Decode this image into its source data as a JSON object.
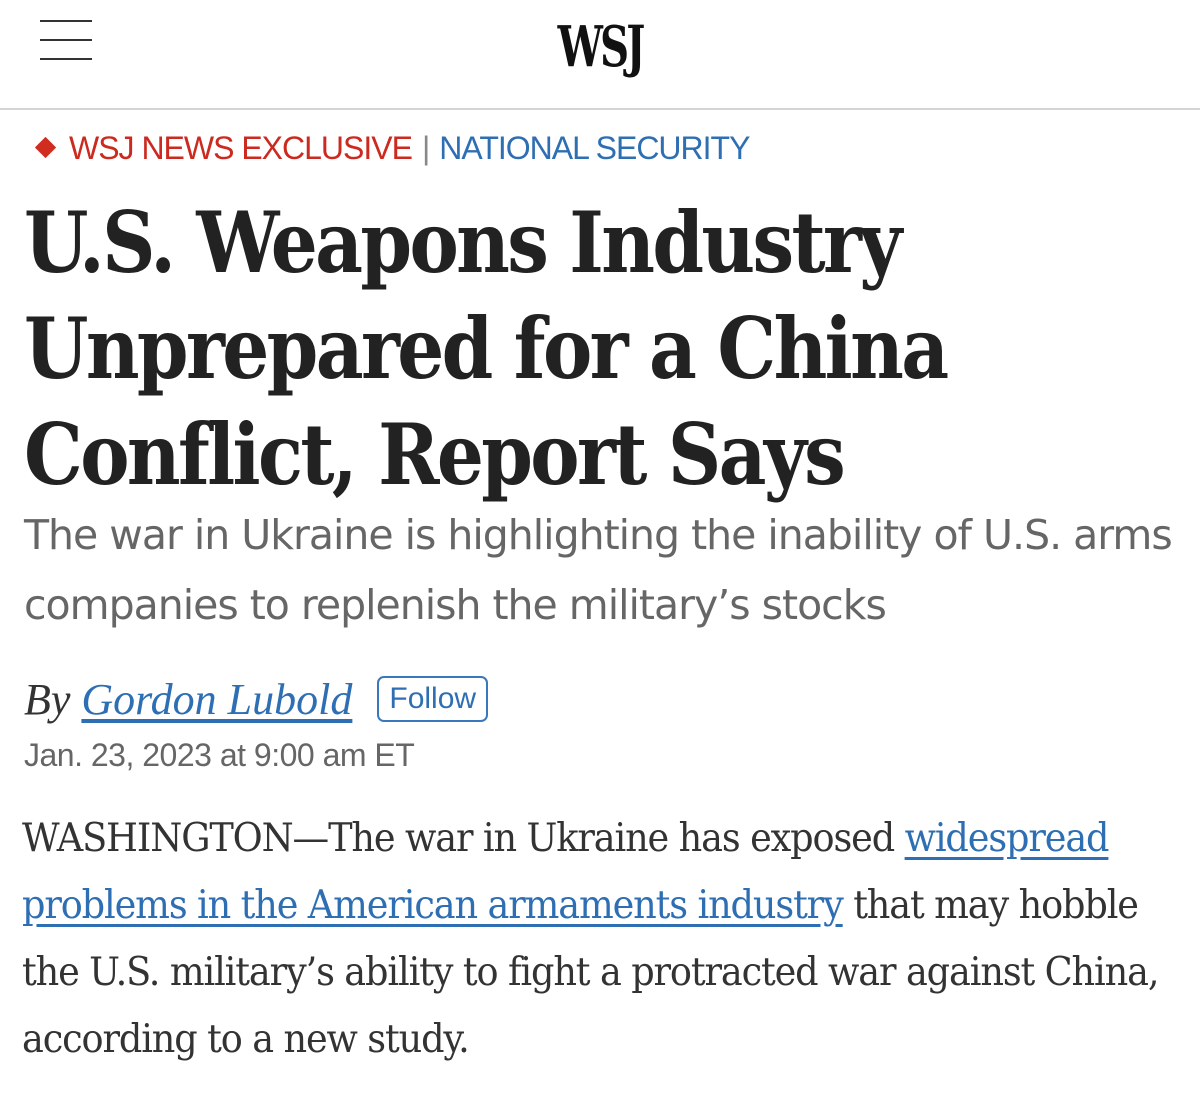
{
  "header": {
    "logo": "WSJ",
    "menu_icon": "hamburger-menu-icon"
  },
  "article": {
    "kicker": {
      "exclusive": "WSJ NEWS EXCLUSIVE",
      "separator": "|",
      "section": "NATIONAL SECURITY",
      "diamond_color": "#d02c20"
    },
    "headline_lines": [
      "U.S. Weapons Industry",
      "Unprepared for a China",
      "Conflict, Report Says"
    ],
    "dek": "The war in Ukraine is highlighting the inability of U.S. arms companies to replenish the military’s stocks",
    "byline": {
      "prefix": "By",
      "author": "Gordon Lubold",
      "follow_label": "Follow"
    },
    "timestamp": "Jan. 23, 2023 at 9:00 am ET",
    "body": {
      "lead": "WASHINGTON—The war in Ukraine has exposed ",
      "link_text": "widespread problems in the American armaments industry",
      "rest": " that may hobble the U.S. military’s ability to fight a protracted war against China, according to a new study."
    }
  },
  "colors": {
    "accent_red": "#cc2a1f",
    "link_blue": "#2e6fb3",
    "headline": "#222222",
    "dek_gray": "#666666"
  }
}
